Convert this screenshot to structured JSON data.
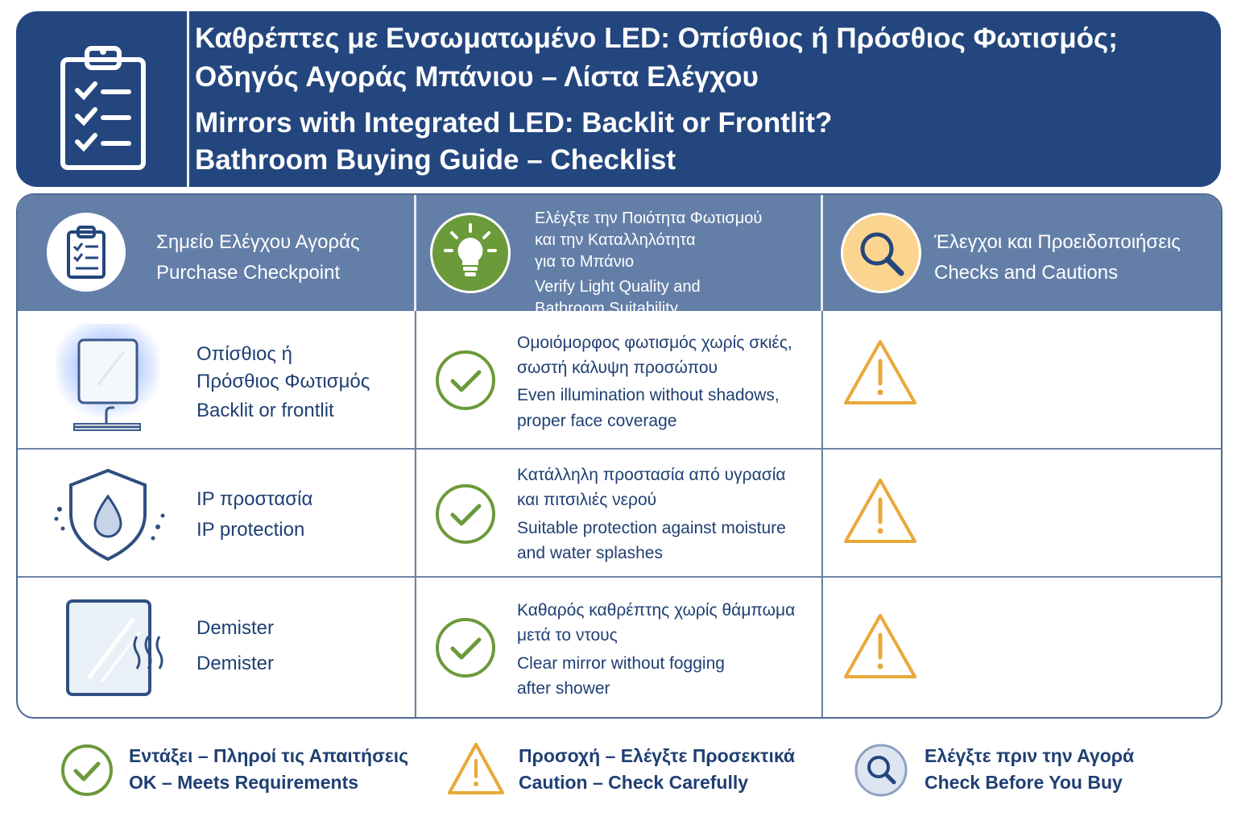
{
  "header": {
    "title_el_1": "Καθρέπτες με Ενσωματωμένο LED: Οπίσθιος ή Πρόσθιος Φωτισμός;",
    "title_el_2": "Οδηγός Αγοράς Μπάνιου – Λίστα Ελέγχου",
    "title_en_1": "Mirrors with Integrated LED: Backlit or Frontlit?",
    "title_en_2": "Bathroom Buying Guide – Checklist",
    "icon": "clipboard-checklist-icon"
  },
  "columns": [
    {
      "el": "Σημείο Ελέγχου Αγοράς",
      "en": "Purchase Checkpoint",
      "icon": "clipboard-icon"
    },
    {
      "el_1": "Ελέγξτε την Ποιότητα Φωτισμού",
      "el_2": "και την Καταλληλότητα",
      "el_3": "για το Μπάνιο",
      "en_1": "Verify Light Quality and",
      "en_2": "Bathroom Suitability",
      "icon": "lightbulb-icon"
    },
    {
      "el": "Έλεγχοι και Προειδοποιήσεις",
      "en": "Checks and Cautions",
      "icon": "magnifier-icon"
    }
  ],
  "rows": [
    {
      "name_el_1": "Οπίσθιος ή",
      "name_el_2": "Πρόσθιος Φωτισμός",
      "name_en": "Backlit or frontlit",
      "check_el_1": "Ομοιόμορφος φωτισμός χωρίς σκιές,",
      "check_el_2": "σωστή κάλυψη προσώπου",
      "check_en_1": "Even illumination without shadows,",
      "check_en_2": "proper face coverage",
      "icon": "backlit-mirror-icon",
      "status": "caution"
    },
    {
      "name_el": "IP προστασία",
      "name_en": "IP protection",
      "check_el_1": "Κατάλληλη προστασία από υγρασία",
      "check_el_2": "και πιτσιλιές νερού",
      "check_en_1": "Suitable protection against moisture",
      "check_en_2": "and water splashes",
      "icon": "water-shield-icon",
      "status": "caution"
    },
    {
      "name_el": "Demister",
      "name_en": "Demister",
      "check_el_1": "Καθαρός καθρέπτης χωρίς θάμπωμα",
      "check_el_2": "μετά το ντους",
      "check_en_1": "Clear mirror without fogging",
      "check_en_2": "after shower",
      "icon": "demister-mirror-icon",
      "status": "caution"
    }
  ],
  "legend": [
    {
      "el": "Εντάξει – Πληροί τις Απαιτήσεις",
      "en": "OK – Meets Requirements",
      "icon": "check-circle-icon"
    },
    {
      "el": "Προσοχή – Ελέγξτε Προσεκτικά",
      "en": "Caution – Check Carefully",
      "icon": "warning-icon"
    },
    {
      "el": "Ελέγξτε πριν την Αγορά",
      "en": "Check Before You Buy",
      "icon": "magnifier-icon"
    }
  ],
  "colors": {
    "navy": "#24467e",
    "header_row": "#637fa8",
    "green": "#6b9a3a",
    "amber": "#e8a93a",
    "text": "#1f3f73"
  }
}
